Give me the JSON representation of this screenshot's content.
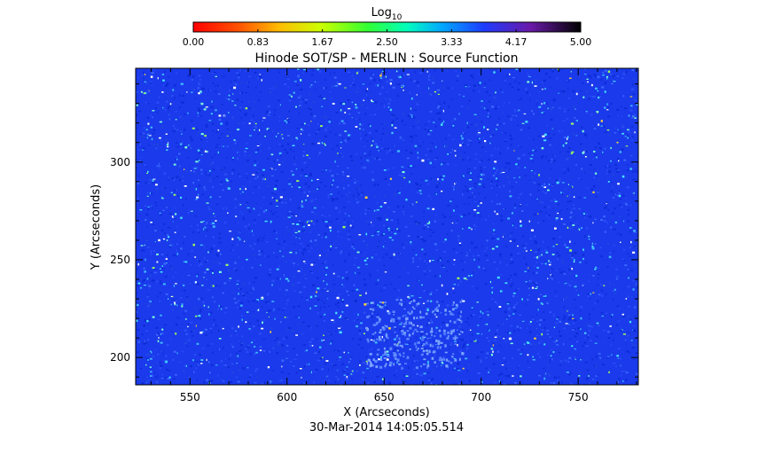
{
  "chart_data": {
    "type": "heatmap",
    "title": "Hinode SOT/SP - MERLIN : Source Function",
    "colorbar": {
      "label": "Log",
      "label_subscript": "10",
      "ticks": [
        "0.00",
        "0.83",
        "1.67",
        "2.50",
        "3.33",
        "4.17",
        "5.00"
      ],
      "range": [
        0,
        5
      ],
      "colormap": "rainbow (red-orange-yellow-green-cyan-blue-purple-black)"
    },
    "xlabel": "X (Arcseconds)",
    "ylabel": "Y (Arcseconds)",
    "xlim": [
      522,
      781
    ],
    "ylim": [
      186,
      348
    ],
    "xticks": [
      {
        "value": 550,
        "label": "550"
      },
      {
        "value": 600,
        "label": "600"
      },
      {
        "value": 650,
        "label": "650"
      },
      {
        "value": 700,
        "label": "700"
      },
      {
        "value": 750,
        "label": "750"
      }
    ],
    "yticks": [
      {
        "value": 200,
        "label": "200"
      },
      {
        "value": 250,
        "label": "250"
      },
      {
        "value": 300,
        "label": "300"
      }
    ],
    "dominant_value_range": [
      3.4,
      4.0
    ],
    "bright_region": {
      "x": [
        640,
        690
      ],
      "y": [
        195,
        230
      ]
    },
    "background_color": "#1a3aeb"
  },
  "timestamp": "30-Mar-2014 14:05:05.514"
}
